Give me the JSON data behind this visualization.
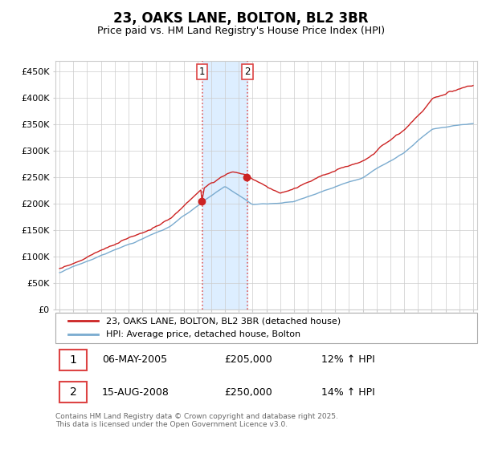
{
  "title": "23, OAKS LANE, BOLTON, BL2 3BR",
  "subtitle": "Price paid vs. HM Land Registry's House Price Index (HPI)",
  "ylim": [
    0,
    470000
  ],
  "yticks": [
    0,
    50000,
    100000,
    150000,
    200000,
    250000,
    300000,
    350000,
    400000,
    450000
  ],
  "xlim_start": 1994.7,
  "xlim_end": 2025.3,
  "legend_entry1": "23, OAKS LANE, BOLTON, BL2 3BR (detached house)",
  "legend_entry2": "HPI: Average price, detached house, Bolton",
  "transaction1_date": "06-MAY-2005",
  "transaction1_price": "£205,000",
  "transaction1_hpi": "12% ↑ HPI",
  "transaction1_year": 2005.35,
  "transaction1_value": 205000,
  "transaction2_date": "15-AUG-2008",
  "transaction2_price": "£250,000",
  "transaction2_hpi": "14% ↑ HPI",
  "transaction2_year": 2008.62,
  "transaction2_value": 250000,
  "footnote": "Contains HM Land Registry data © Crown copyright and database right 2025.\nThis data is licensed under the Open Government Licence v3.0.",
  "line_color_red": "#cc2222",
  "line_color_blue": "#7aabcf",
  "shade_color": "#ddeeff",
  "vline_color": "#dd4444",
  "background_color": "#ffffff",
  "grid_color": "#cccccc",
  "title_fontsize": 12,
  "subtitle_fontsize": 9
}
